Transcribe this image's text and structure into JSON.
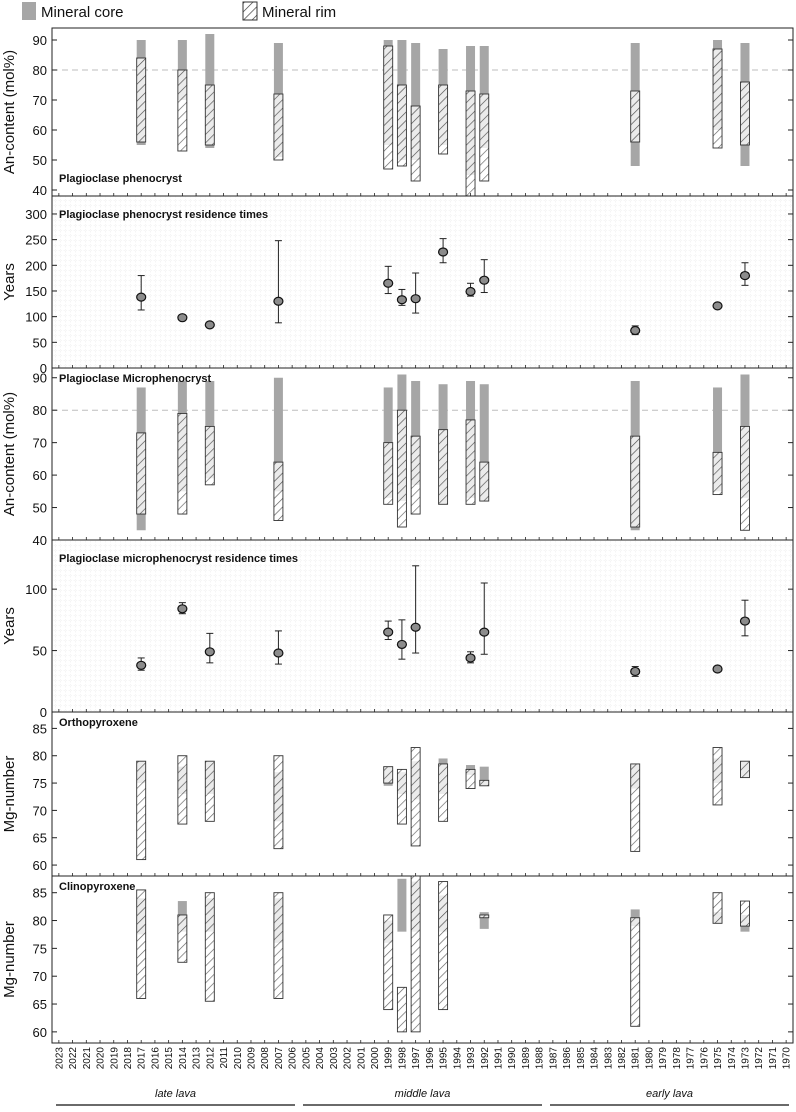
{
  "legend": {
    "core_label": "Mineral core",
    "rim_label": "Mineral rim",
    "core_color": "#a6a6a6",
    "rim_hatch_color": "#333333"
  },
  "chart_data": [
    {
      "type": "range-bar",
      "title": "Plagioclase phenocryst",
      "ylabel": "An-content (mol%)",
      "ylim": [
        38,
        94
      ],
      "yticks": [
        40,
        50,
        60,
        70,
        80,
        90
      ],
      "reference_line": 80,
      "grid": false,
      "items": [
        {
          "x": 2017,
          "core": [
            55,
            90
          ],
          "rim": [
            56,
            84
          ]
        },
        {
          "x": 2014,
          "core": [
            70,
            90
          ],
          "rim": [
            53,
            80
          ]
        },
        {
          "x": 2012,
          "core": [
            54,
            92
          ],
          "rim": [
            55,
            75
          ]
        },
        {
          "x": 2007,
          "core": [
            51,
            89
          ],
          "rim": [
            50,
            72
          ]
        },
        {
          "x": 1999,
          "core": [
            55,
            90
          ],
          "rim": [
            47,
            88
          ]
        },
        {
          "x": 1998,
          "core": [
            50,
            90
          ],
          "rim": [
            48,
            75
          ]
        },
        {
          "x": 1997,
          "core": [
            50,
            89
          ],
          "rim": [
            43,
            68
          ]
        },
        {
          "x": 1995,
          "core": [
            55,
            87
          ],
          "rim": [
            52,
            75
          ]
        },
        {
          "x": 1993,
          "core": [
            45,
            88
          ],
          "rim": [
            38,
            73
          ]
        },
        {
          "x": 1992,
          "core": [
            54,
            88
          ],
          "rim": [
            43,
            72
          ]
        },
        {
          "x": 1981,
          "core": [
            48,
            89
          ],
          "rim": [
            56,
            73
          ]
        },
        {
          "x": 1975,
          "core": [
            60,
            90
          ],
          "rim": [
            54,
            87
          ]
        },
        {
          "x": 1973,
          "core": [
            48,
            89
          ],
          "rim": [
            55,
            76
          ]
        }
      ]
    },
    {
      "type": "scatter-errorbar",
      "title": "Plagioclase phenocryst residence times",
      "ylabel": "Years",
      "ylim": [
        0,
        335
      ],
      "yticks": [
        0,
        50,
        100,
        150,
        200,
        250,
        300
      ],
      "grid": true,
      "points": [
        {
          "x": 2017,
          "y": 138,
          "lo": 113,
          "hi": 180
        },
        {
          "x": 2014,
          "y": 98,
          "lo": 96,
          "hi": 100
        },
        {
          "x": 2012,
          "y": 84,
          "lo": 81,
          "hi": 87
        },
        {
          "x": 2007,
          "y": 130,
          "lo": 88,
          "hi": 248
        },
        {
          "x": 1999,
          "y": 165,
          "lo": 145,
          "hi": 198
        },
        {
          "x": 1998,
          "y": 133,
          "lo": 122,
          "hi": 153
        },
        {
          "x": 1997,
          "y": 135,
          "lo": 107,
          "hi": 185
        },
        {
          "x": 1995,
          "y": 226,
          "lo": 205,
          "hi": 252
        },
        {
          "x": 1993,
          "y": 149,
          "lo": 140,
          "hi": 165
        },
        {
          "x": 1992,
          "y": 171,
          "lo": 147,
          "hi": 211
        },
        {
          "x": 1981,
          "y": 73,
          "lo": 65,
          "hi": 82
        },
        {
          "x": 1975,
          "y": 121,
          "lo": 119,
          "hi": 123
        },
        {
          "x": 1973,
          "y": 180,
          "lo": 161,
          "hi": 205
        }
      ]
    },
    {
      "type": "range-bar",
      "title": "Plagioclase Microphenocryst",
      "ylabel": "An-content (mol%)",
      "ylim": [
        40,
        93
      ],
      "yticks": [
        40,
        50,
        60,
        70,
        80,
        90
      ],
      "reference_line": 80,
      "grid": false,
      "items": [
        {
          "x": 2017,
          "core": [
            43,
            87
          ],
          "rim": [
            48,
            73
          ]
        },
        {
          "x": 2014,
          "core": [
            55,
            89
          ],
          "rim": [
            48,
            79
          ]
        },
        {
          "x": 2012,
          "core": [
            59,
            89
          ],
          "rim": [
            57,
            75
          ]
        },
        {
          "x": 2007,
          "core": [
            55,
            90
          ],
          "rim": [
            46,
            64
          ]
        },
        {
          "x": 1999,
          "core": [
            53,
            87
          ],
          "rim": [
            51,
            70
          ]
        },
        {
          "x": 1998,
          "core": [
            52,
            91
          ],
          "rim": [
            44,
            80
          ]
        },
        {
          "x": 1997,
          "core": [
            57,
            89
          ],
          "rim": [
            48,
            72
          ]
        },
        {
          "x": 1995,
          "core": [
            51,
            88
          ],
          "rim": [
            51,
            74
          ]
        },
        {
          "x": 1993,
          "core": [
            53,
            89
          ],
          "rim": [
            51,
            77
          ]
        },
        {
          "x": 1992,
          "core": [
            52,
            88
          ],
          "rim": [
            52,
            64
          ]
        },
        {
          "x": 1981,
          "core": [
            43,
            89
          ],
          "rim": [
            44,
            72
          ]
        },
        {
          "x": 1975,
          "core": [
            55,
            87
          ],
          "rim": [
            54,
            67
          ]
        },
        {
          "x": 1973,
          "core": [
            53,
            91
          ],
          "rim": [
            43,
            75
          ]
        }
      ]
    },
    {
      "type": "scatter-errorbar",
      "title": "Plagioclase microphenocryst residence times",
      "ylabel": "Years",
      "ylim": [
        0,
        140
      ],
      "yticks": [
        0,
        50,
        100
      ],
      "grid": true,
      "points": [
        {
          "x": 2017,
          "y": 38,
          "lo": 34,
          "hi": 44
        },
        {
          "x": 2014,
          "y": 84,
          "lo": 80,
          "hi": 89
        },
        {
          "x": 2012,
          "y": 49,
          "lo": 40,
          "hi": 64
        },
        {
          "x": 2007,
          "y": 48,
          "lo": 39,
          "hi": 66
        },
        {
          "x": 1999,
          "y": 65,
          "lo": 59,
          "hi": 74
        },
        {
          "x": 1998,
          "y": 55,
          "lo": 43,
          "hi": 75
        },
        {
          "x": 1997,
          "y": 69,
          "lo": 48,
          "hi": 119
        },
        {
          "x": 1993,
          "y": 44,
          "lo": 40,
          "hi": 49
        },
        {
          "x": 1992,
          "y": 65,
          "lo": 47,
          "hi": 105
        },
        {
          "x": 1981,
          "y": 33,
          "lo": 29,
          "hi": 37
        },
        {
          "x": 1975,
          "y": 35,
          "lo": 33,
          "hi": 37
        },
        {
          "x": 1973,
          "y": 74,
          "lo": 62,
          "hi": 91
        }
      ]
    },
    {
      "type": "range-bar",
      "title": "Orthopyroxene",
      "ylabel": "Mg-number",
      "ylim": [
        58,
        88
      ],
      "yticks": [
        60,
        65,
        70,
        75,
        80,
        85
      ],
      "grid": false,
      "items": [
        {
          "x": 2017,
          "core": [
            75,
            79
          ],
          "rim": [
            61,
            79
          ]
        },
        {
          "x": 2014,
          "core": [
            73,
            78
          ],
          "rim": [
            67.5,
            80
          ]
        },
        {
          "x": 2012,
          "core": [
            73,
            79
          ],
          "rim": [
            68,
            79
          ]
        },
        {
          "x": 2007,
          "core": [
            68,
            77
          ],
          "rim": [
            63,
            80
          ]
        },
        {
          "x": 1999,
          "core": [
            74.5,
            78
          ],
          "rim": [
            75,
            78
          ]
        },
        {
          "x": 1998,
          "core": [
            73,
            77
          ],
          "rim": [
            67.5,
            77.5
          ]
        },
        {
          "x": 1997,
          "core": [
            72,
            79
          ],
          "rim": [
            63.5,
            81.5
          ]
        },
        {
          "x": 1995,
          "core": [
            73,
            79.5
          ],
          "rim": [
            68,
            78.5
          ]
        },
        {
          "x": 1993,
          "core": [
            76.5,
            78.3
          ],
          "rim": [
            74,
            77.5
          ]
        },
        {
          "x": 1992,
          "core": [
            74.5,
            78
          ],
          "rim": [
            74.5,
            75.5
          ]
        },
        {
          "x": 1981,
          "core": [
            74,
            78.5
          ],
          "rim": [
            62.5,
            78.5
          ]
        },
        {
          "x": 1975,
          "core": [
            75,
            79.5
          ],
          "rim": [
            71,
            81.5
          ]
        },
        {
          "x": 1973,
          "core": [
            76,
            79
          ],
          "rim": [
            76,
            79
          ]
        }
      ]
    },
    {
      "type": "range-bar",
      "title": "Clinopyroxene",
      "ylabel": "Mg-number",
      "ylim": [
        58,
        88
      ],
      "yticks": [
        60,
        65,
        70,
        75,
        80,
        85
      ],
      "grid": false,
      "items": [
        {
          "x": 2017,
          "core": [
            77.5,
            84
          ],
          "rim": [
            66,
            85.5
          ]
        },
        {
          "x": 2014,
          "core": [
            78,
            83.5
          ],
          "rim": [
            72.5,
            81
          ]
        },
        {
          "x": 2012,
          "core": [
            78,
            84
          ],
          "rim": [
            65.5,
            85
          ]
        },
        {
          "x": 2007,
          "core": [
            76,
            84
          ],
          "rim": [
            66,
            85
          ]
        },
        {
          "x": 1999,
          "core": [
            76,
            80
          ],
          "rim": [
            64,
            81
          ]
        },
        {
          "x": 1998,
          "core": [
            78,
            87.5
          ],
          "rim": [
            60,
            68
          ]
        },
        {
          "x": 1997,
          "core": [
            78,
            87
          ],
          "rim": [
            60,
            88
          ]
        },
        {
          "x": 1995,
          "core": [
            78,
            84.5
          ],
          "rim": [
            64,
            87
          ]
        },
        {
          "x": 1992,
          "core": [
            78.5,
            81.5
          ],
          "rim": [
            80.5,
            81
          ]
        },
        {
          "x": 1981,
          "core": [
            79,
            82
          ],
          "rim": [
            61,
            80.5
          ]
        },
        {
          "x": 1975,
          "core": [
            79.5,
            81.5
          ],
          "rim": [
            79.5,
            85
          ]
        },
        {
          "x": 1973,
          "core": [
            78,
            81
          ],
          "rim": [
            79,
            83.5
          ]
        }
      ]
    }
  ],
  "x_axis": {
    "ticks": [
      "2023",
      "2022",
      "2021",
      "2020",
      "2019",
      "2018",
      "2017",
      "2016",
      "2015",
      "2014",
      "2013",
      "2012",
      "2011",
      "2010",
      "2009",
      "2008",
      "2007",
      "2006",
      "2005",
      "2004",
      "2003",
      "2002",
      "2001",
      "2000",
      "1999",
      "1998",
      "1997",
      "1996",
      "1995",
      "1994",
      "1993",
      "1992",
      "1991",
      "1990",
      "1989",
      "1988",
      "1987",
      "1986",
      "1985",
      "1984",
      "1983",
      "1982",
      "1981",
      "1980",
      "1979",
      "1978",
      "1977",
      "1976",
      "1975",
      "1974",
      "1973",
      "1972",
      "1971",
      "1970"
    ],
    "segments": [
      {
        "label": "late lava",
        "ticks": [
          "2023",
          "2006"
        ]
      },
      {
        "label": "middle lava",
        "ticks": [
          "2005",
          "1988"
        ]
      },
      {
        "label": "early lava",
        "ticks": [
          "1987",
          "1970"
        ]
      }
    ]
  }
}
